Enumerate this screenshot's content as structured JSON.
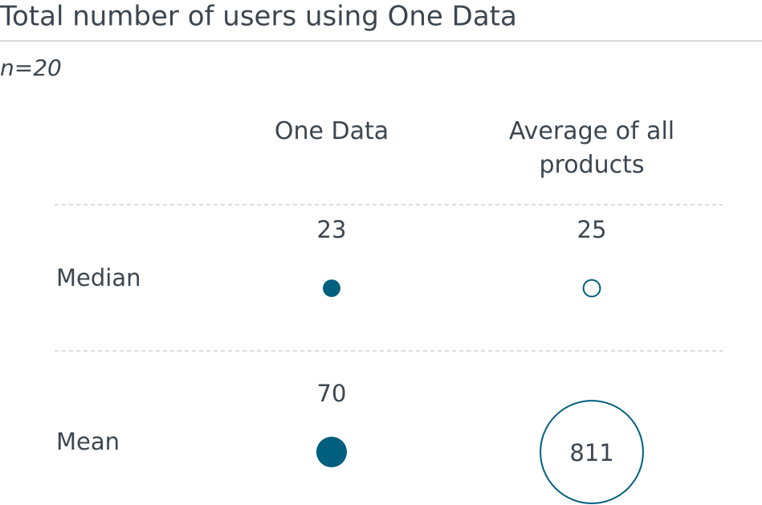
{
  "chart_data": {
    "type": "bubble-table",
    "title": "Total number of users using One Data",
    "subtitle": "n=20",
    "categories": [
      "Median",
      "Mean"
    ],
    "series": [
      {
        "name": "One Data",
        "color": "#005f7f",
        "marker": "filled",
        "values": [
          23,
          70
        ]
      },
      {
        "name": "Average of all products",
        "color": "#005f7f",
        "marker": "open",
        "values": [
          25,
          811
        ]
      }
    ]
  }
}
